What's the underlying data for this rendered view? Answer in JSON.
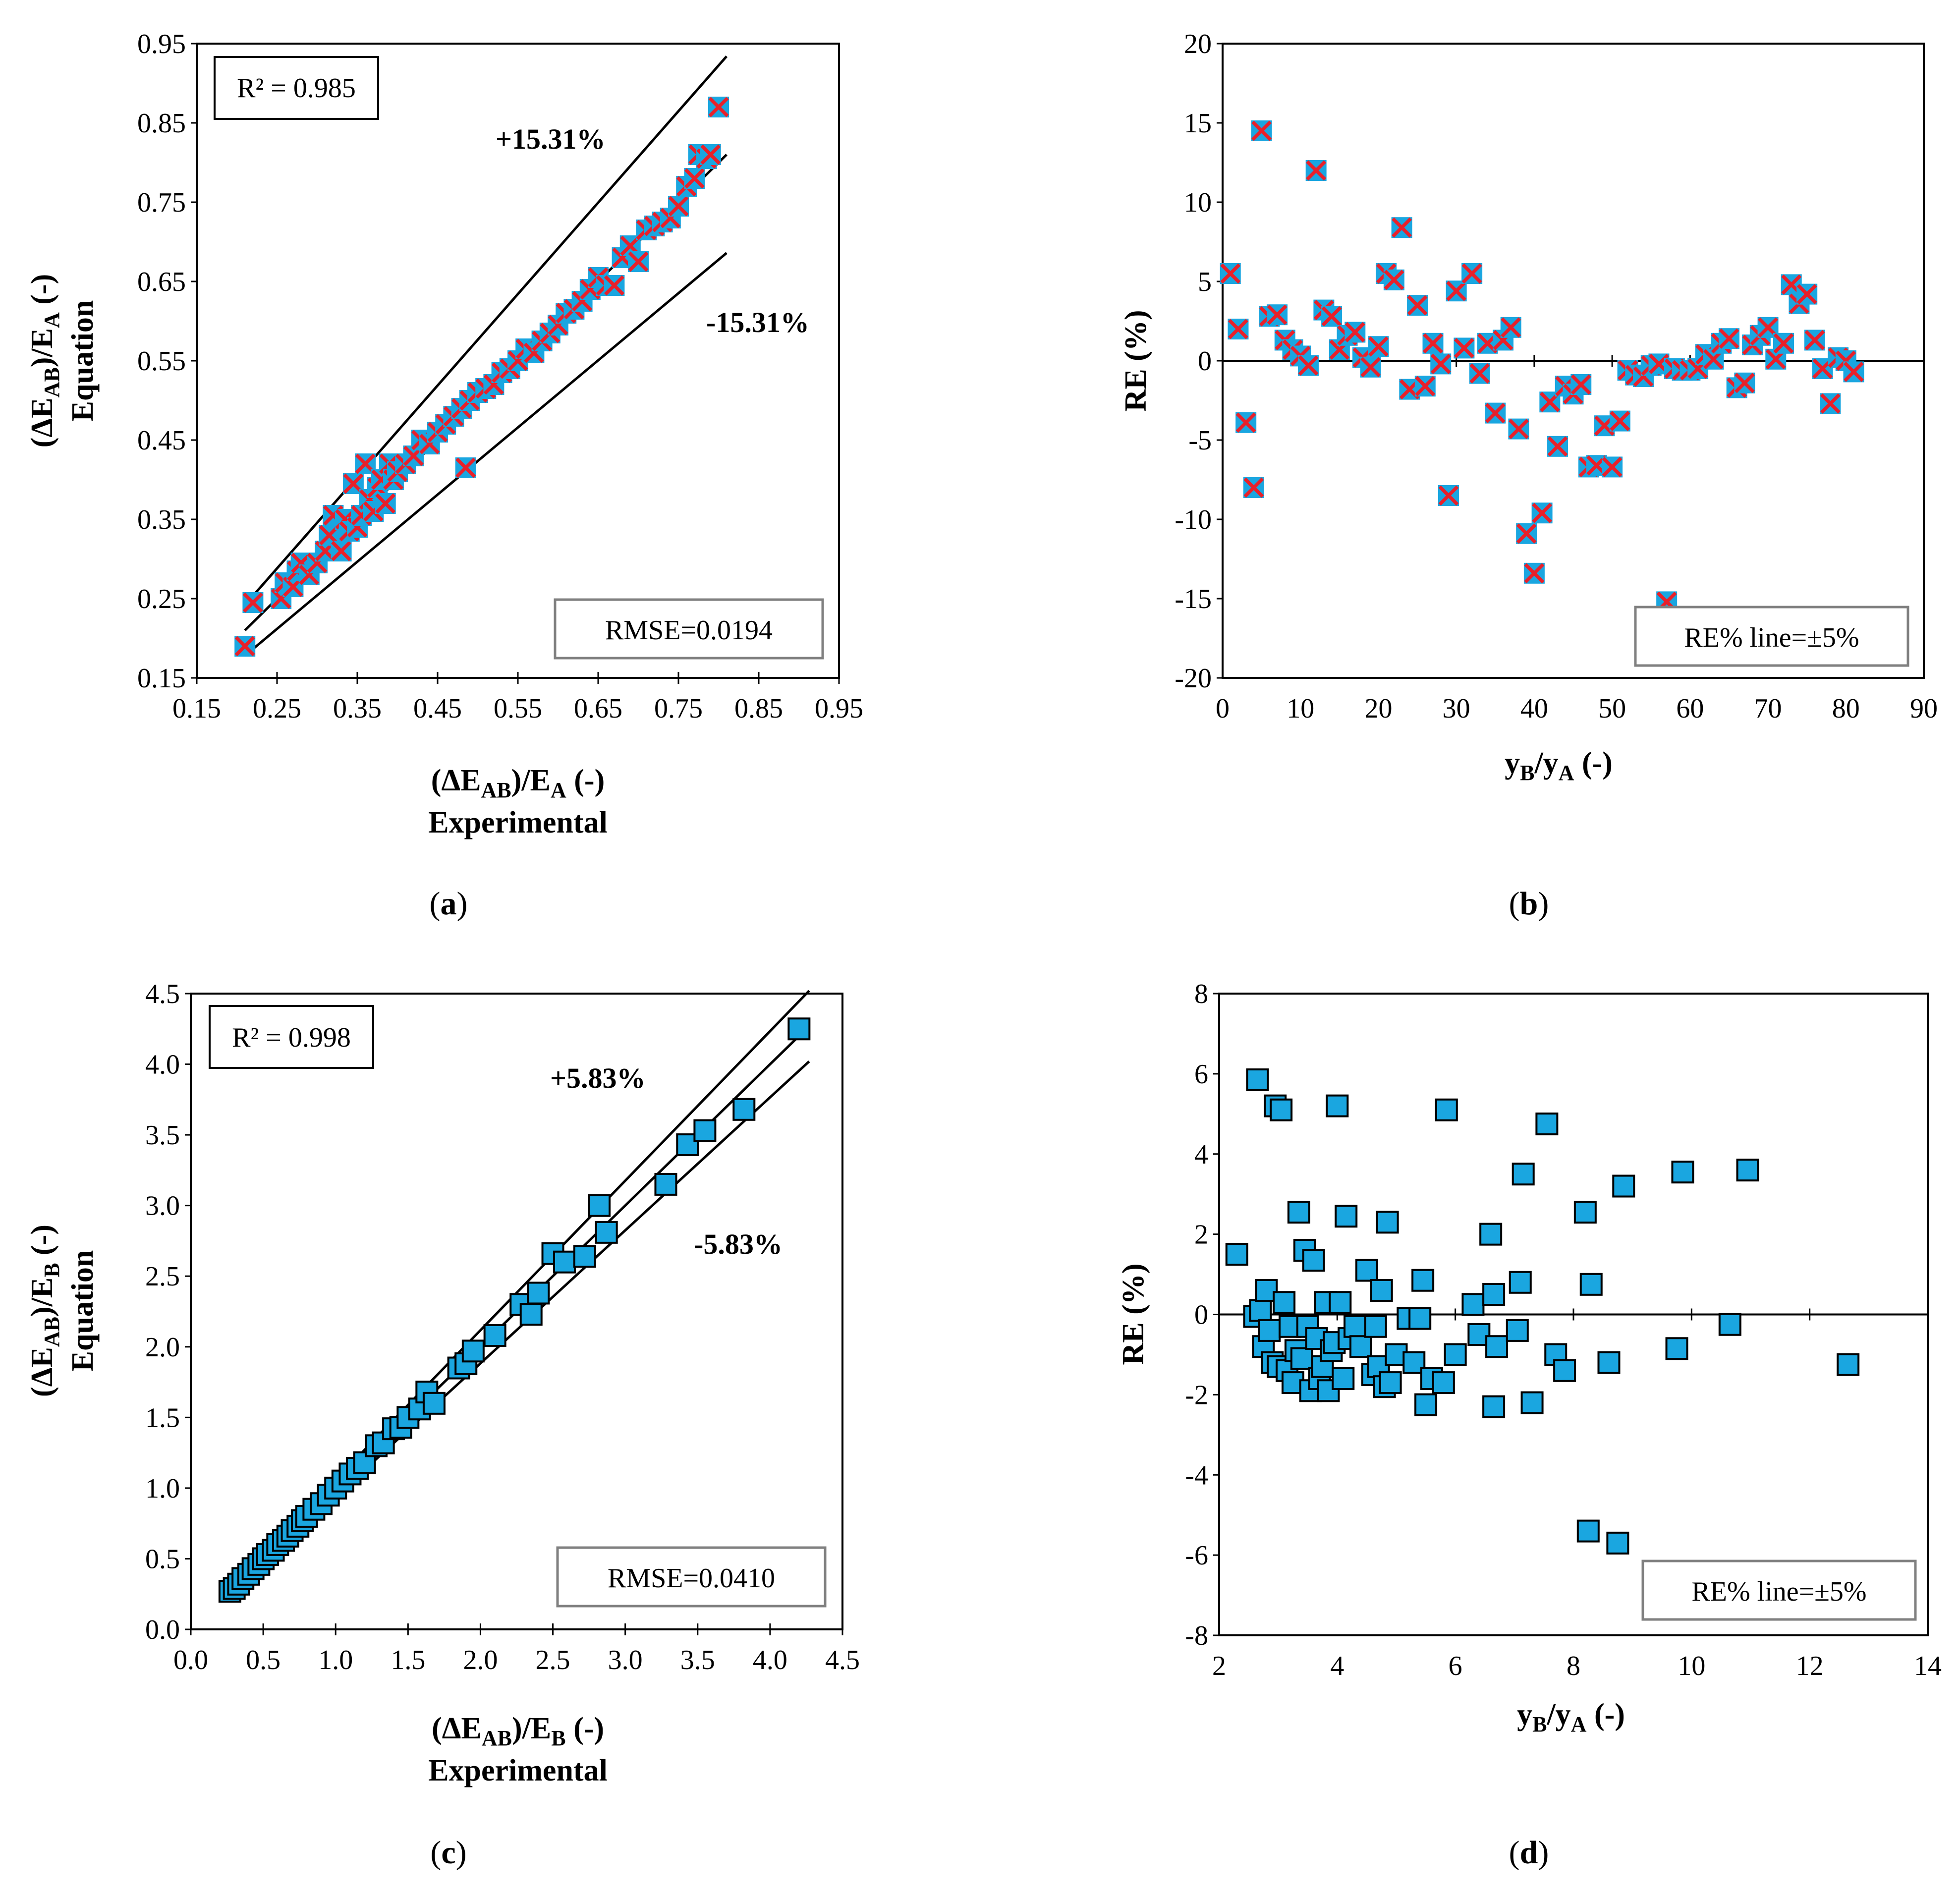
{
  "colors": {
    "marker_fill": "#1aa6e0",
    "cross": "#e8202a",
    "line": "#000000",
    "box_gray": "#808080"
  },
  "panels": {
    "a": {
      "label_open": "(",
      "label_letter": "a",
      "label_close": ")",
      "r2": "R² = 0.985",
      "rmse": "RMSE=0.0194",
      "plus_label": "+15.31%",
      "minus_label": "-15.31%",
      "xlabel_main": "(ΔE",
      "xlabel_sub1": "AB",
      "xlabel_mid": ")/E",
      "xlabel_sub2": "A",
      "xlabel_end": " (-)",
      "xlabel2": "Experimental",
      "ylabel_main": "(ΔE",
      "ylabel_sub1": "AB",
      "ylabel_mid": ")/E",
      "ylabel_sub2": "A",
      "ylabel_end": " (-)",
      "ylabel2": "Equation"
    },
    "b": {
      "label_open": "(",
      "label_letter": "b",
      "label_close": ")",
      "note": "RE% line=±5%",
      "xlabel_main": "y",
      "xlabel_sub1": "B",
      "xlabel_mid": "/y",
      "xlabel_sub2": "A",
      "xlabel_end": " (-)",
      "ylabel": "RE (%)"
    },
    "c": {
      "label_open": "(",
      "label_letter": "c",
      "label_close": ")",
      "r2": "R² = 0.998",
      "rmse": "RMSE=0.0410",
      "plus_label": "+5.83%",
      "minus_label": "-5.83%",
      "xlabel_main": "(ΔE",
      "xlabel_sub1": "AB",
      "xlabel_mid": ")/E",
      "xlabel_sub2": "B",
      "xlabel_end": " (-)",
      "xlabel2": "Experimental",
      "ylabel_main": "(ΔE",
      "ylabel_sub1": "AB",
      "ylabel_mid": ")/E",
      "ylabel_sub2": "B",
      "ylabel_end": " (-)",
      "ylabel2": "Equation"
    },
    "d": {
      "label_open": "(",
      "label_letter": "d",
      "label_close": ")",
      "note": "RE% line=±5%",
      "xlabel_main": "y",
      "xlabel_sub1": "B",
      "xlabel_mid": "/y",
      "xlabel_sub2": "A",
      "xlabel_end": " (-)",
      "ylabel": "RE (%)"
    }
  },
  "chart_data": [
    {
      "type": "scatter",
      "panel": "a",
      "xlim": [
        0.15,
        0.95
      ],
      "ylim": [
        0.15,
        0.95
      ],
      "xticks": [
        "0.15",
        "0.25",
        "0.35",
        "0.45",
        "0.55",
        "0.65",
        "0.75",
        "0.85",
        "0.95"
      ],
      "yticks": [
        "0.15",
        "0.25",
        "0.35",
        "0.45",
        "0.55",
        "0.65",
        "0.75",
        "0.85",
        "0.95"
      ],
      "ref_lines": [
        {
          "name": "+15.31%",
          "x": [
            0.21,
            0.81
          ],
          "y": [
            0.242,
            0.934
          ]
        },
        {
          "name": "fit",
          "x": [
            0.21,
            0.81
          ],
          "y": [
            0.21,
            0.81
          ]
        },
        {
          "name": "-15.31%",
          "x": [
            0.21,
            0.81
          ],
          "y": [
            0.178,
            0.686
          ]
        }
      ],
      "points": [
        [
          0.21,
          0.19
        ],
        [
          0.22,
          0.245
        ],
        [
          0.255,
          0.25
        ],
        [
          0.26,
          0.27
        ],
        [
          0.27,
          0.265
        ],
        [
          0.275,
          0.285
        ],
        [
          0.28,
          0.295
        ],
        [
          0.29,
          0.28
        ],
        [
          0.3,
          0.295
        ],
        [
          0.31,
          0.31
        ],
        [
          0.315,
          0.33
        ],
        [
          0.32,
          0.355
        ],
        [
          0.33,
          0.31
        ],
        [
          0.335,
          0.35
        ],
        [
          0.34,
          0.335
        ],
        [
          0.345,
          0.395
        ],
        [
          0.35,
          0.34
        ],
        [
          0.355,
          0.355
        ],
        [
          0.36,
          0.42
        ],
        [
          0.365,
          0.375
        ],
        [
          0.37,
          0.36
        ],
        [
          0.375,
          0.39
        ],
        [
          0.38,
          0.4
        ],
        [
          0.385,
          0.37
        ],
        [
          0.39,
          0.42
        ],
        [
          0.395,
          0.4
        ],
        [
          0.4,
          0.41
        ],
        [
          0.41,
          0.42
        ],
        [
          0.42,
          0.43
        ],
        [
          0.43,
          0.45
        ],
        [
          0.44,
          0.445
        ],
        [
          0.45,
          0.46
        ],
        [
          0.46,
          0.47
        ],
        [
          0.47,
          0.48
        ],
        [
          0.48,
          0.49
        ],
        [
          0.485,
          0.415
        ],
        [
          0.49,
          0.5
        ],
        [
          0.5,
          0.51
        ],
        [
          0.51,
          0.515
        ],
        [
          0.52,
          0.52
        ],
        [
          0.53,
          0.535
        ],
        [
          0.54,
          0.54
        ],
        [
          0.55,
          0.55
        ],
        [
          0.56,
          0.565
        ],
        [
          0.57,
          0.56
        ],
        [
          0.58,
          0.575
        ],
        [
          0.59,
          0.585
        ],
        [
          0.6,
          0.595
        ],
        [
          0.61,
          0.61
        ],
        [
          0.62,
          0.615
        ],
        [
          0.63,
          0.625
        ],
        [
          0.64,
          0.64
        ],
        [
          0.65,
          0.655
        ],
        [
          0.66,
          0.645
        ],
        [
          0.67,
          0.645
        ],
        [
          0.68,
          0.68
        ],
        [
          0.69,
          0.695
        ],
        [
          0.7,
          0.675
        ],
        [
          0.71,
          0.715
        ],
        [
          0.72,
          0.72
        ],
        [
          0.73,
          0.725
        ],
        [
          0.74,
          0.73
        ],
        [
          0.75,
          0.745
        ],
        [
          0.76,
          0.77
        ],
        [
          0.77,
          0.78
        ],
        [
          0.775,
          0.81
        ],
        [
          0.785,
          0.805
        ],
        [
          0.79,
          0.81
        ],
        [
          0.8,
          0.87
        ]
      ]
    },
    {
      "type": "scatter",
      "panel": "b",
      "xlim": [
        0,
        90
      ],
      "ylim": [
        -20,
        20
      ],
      "xticks": [
        "0",
        "10",
        "20",
        "30",
        "40",
        "50",
        "60",
        "70",
        "80",
        "90"
      ],
      "yticks": [
        "-20",
        "-15",
        "-10",
        "-5",
        "0",
        "5",
        "10",
        "15",
        "20"
      ],
      "points": [
        [
          1,
          5.5
        ],
        [
          2,
          2.0
        ],
        [
          3,
          -3.9
        ],
        [
          4,
          -8.0
        ],
        [
          5,
          14.5
        ],
        [
          6,
          2.8
        ],
        [
          7,
          2.9
        ],
        [
          8,
          1.3
        ],
        [
          9,
          0.7
        ],
        [
          10,
          0.3
        ],
        [
          11,
          -0.3
        ],
        [
          12,
          12.0
        ],
        [
          13,
          3.2
        ],
        [
          14,
          2.8
        ],
        [
          15,
          0.7
        ],
        [
          16,
          1.6
        ],
        [
          17,
          1.8
        ],
        [
          18,
          0.2
        ],
        [
          19,
          -0.4
        ],
        [
          20,
          0.9
        ],
        [
          21,
          5.5
        ],
        [
          22,
          5.1
        ],
        [
          23,
          8.4
        ],
        [
          24,
          -1.8
        ],
        [
          25,
          3.5
        ],
        [
          26,
          -1.6
        ],
        [
          27,
          1.1
        ],
        [
          28,
          -0.2
        ],
        [
          29,
          -8.5
        ],
        [
          30,
          4.4
        ],
        [
          31,
          0.8
        ],
        [
          32,
          5.5
        ],
        [
          33,
          -0.8
        ],
        [
          34,
          1.1
        ],
        [
          35,
          -3.3
        ],
        [
          36,
          1.3
        ],
        [
          37,
          2.1
        ],
        [
          38,
          -4.3
        ],
        [
          39,
          -10.9
        ],
        [
          40,
          -13.4
        ],
        [
          41,
          -9.6
        ],
        [
          42,
          -2.6
        ],
        [
          43,
          -5.4
        ],
        [
          44,
          -1.6
        ],
        [
          45,
          -2.1
        ],
        [
          46,
          -1.5
        ],
        [
          47,
          -6.7
        ],
        [
          48,
          -6.6
        ],
        [
          49,
          -4.1
        ],
        [
          50,
          -6.7
        ],
        [
          51,
          -3.8
        ],
        [
          52,
          -0.6
        ],
        [
          53,
          -0.9
        ],
        [
          54,
          -1.0
        ],
        [
          55,
          -0.3
        ],
        [
          56,
          -0.2
        ],
        [
          57,
          -15.2
        ],
        [
          58,
          -0.5
        ],
        [
          59,
          -0.6
        ],
        [
          60,
          -0.6
        ],
        [
          61,
          -0.5
        ],
        [
          62,
          0.4
        ],
        [
          63,
          0.1
        ],
        [
          64,
          1.1
        ],
        [
          65,
          1.4
        ],
        [
          66,
          -1.7
        ],
        [
          67,
          -1.4
        ],
        [
          68,
          1.0
        ],
        [
          69,
          1.6
        ],
        [
          70,
          2.1
        ],
        [
          71,
          0.1
        ],
        [
          72,
          1.1
        ],
        [
          73,
          4.8
        ],
        [
          74,
          3.6
        ],
        [
          75,
          4.2
        ],
        [
          76,
          1.3
        ],
        [
          77,
          -0.5
        ],
        [
          78,
          -2.7
        ],
        [
          79,
          0.2
        ],
        [
          80,
          0.0
        ],
        [
          81,
          -0.7
        ]
      ]
    },
    {
      "type": "scatter",
      "panel": "c",
      "xlim": [
        0.0,
        4.5
      ],
      "ylim": [
        0.0,
        4.5
      ],
      "xticks": [
        "0.0",
        "0.5",
        "1.0",
        "1.5",
        "2.0",
        "2.5",
        "3.0",
        "3.5",
        "4.0",
        "4.5"
      ],
      "yticks": [
        "0.0",
        "0.5",
        "1.0",
        "1.5",
        "2.0",
        "2.5",
        "3.0",
        "3.5",
        "4.0",
        "4.5"
      ],
      "ref_lines": [
        {
          "name": "+5.83%",
          "x": [
            0.27,
            4.27
          ],
          "y": [
            0.286,
            4.52
          ]
        },
        {
          "name": "fit",
          "x": [
            0.27,
            4.27
          ],
          "y": [
            0.27,
            4.27
          ]
        },
        {
          "name": "-5.83%",
          "x": [
            0.27,
            4.27
          ],
          "y": [
            0.254,
            4.02
          ]
        }
      ],
      "points": [
        [
          0.27,
          0.27
        ],
        [
          0.3,
          0.29
        ],
        [
          0.33,
          0.32
        ],
        [
          0.36,
          0.36
        ],
        [
          0.4,
          0.39
        ],
        [
          0.43,
          0.43
        ],
        [
          0.47,
          0.46
        ],
        [
          0.5,
          0.5
        ],
        [
          0.53,
          0.53
        ],
        [
          0.57,
          0.56
        ],
        [
          0.6,
          0.6
        ],
        [
          0.64,
          0.63
        ],
        [
          0.67,
          0.66
        ],
        [
          0.7,
          0.7
        ],
        [
          0.74,
          0.73
        ],
        [
          0.77,
          0.77
        ],
        [
          0.8,
          0.8
        ],
        [
          0.85,
          0.85
        ],
        [
          0.9,
          0.89
        ],
        [
          0.95,
          0.95
        ],
        [
          1.0,
          1.0
        ],
        [
          1.05,
          1.05
        ],
        [
          1.1,
          1.1
        ],
        [
          1.15,
          1.14
        ],
        [
          1.2,
          1.18
        ],
        [
          1.28,
          1.3
        ],
        [
          1.33,
          1.32
        ],
        [
          1.4,
          1.42
        ],
        [
          1.45,
          1.43
        ],
        [
          1.5,
          1.5
        ],
        [
          1.58,
          1.56
        ],
        [
          1.63,
          1.68
        ],
        [
          1.68,
          1.6
        ],
        [
          1.85,
          1.85
        ],
        [
          1.9,
          1.88
        ],
        [
          1.95,
          1.97
        ],
        [
          2.1,
          2.08
        ],
        [
          2.28,
          2.3
        ],
        [
          2.35,
          2.23
        ],
        [
          2.4,
          2.38
        ],
        [
          2.5,
          2.66
        ],
        [
          2.58,
          2.6
        ],
        [
          2.72,
          2.64
        ],
        [
          2.82,
          3.0
        ],
        [
          2.87,
          2.81
        ],
        [
          3.28,
          3.15
        ],
        [
          3.43,
          3.43
        ],
        [
          3.55,
          3.53
        ],
        [
          3.82,
          3.68
        ],
        [
          4.2,
          4.25
        ]
      ]
    },
    {
      "type": "scatter",
      "panel": "d",
      "xlim": [
        2,
        14
      ],
      "ylim": [
        -8,
        8
      ],
      "xticks": [
        "2",
        "4",
        "6",
        "8",
        "10",
        "12",
        "14"
      ],
      "yticks": [
        "-8",
        "-6",
        "-4",
        "-2",
        "0",
        "2",
        "4",
        "6",
        "8"
      ],
      "points": [
        [
          2.3,
          1.5
        ],
        [
          2.6,
          -0.05
        ],
        [
          2.65,
          5.85
        ],
        [
          2.7,
          0.1
        ],
        [
          2.75,
          -0.8
        ],
        [
          2.8,
          0.6
        ],
        [
          2.85,
          -0.4
        ],
        [
          2.9,
          -1.2
        ],
        [
          2.95,
          5.2
        ],
        [
          3.0,
          -1.3
        ],
        [
          3.05,
          5.1
        ],
        [
          3.1,
          0.3
        ],
        [
          3.15,
          -1.4
        ],
        [
          3.2,
          -0.3
        ],
        [
          3.25,
          -1.7
        ],
        [
          3.3,
          -0.9
        ],
        [
          3.35,
          2.55
        ],
        [
          3.4,
          -1.1
        ],
        [
          3.45,
          1.6
        ],
        [
          3.5,
          -0.3
        ],
        [
          3.55,
          -1.9
        ],
        [
          3.6,
          1.35
        ],
        [
          3.65,
          -0.6
        ],
        [
          3.7,
          -1.6
        ],
        [
          3.75,
          -1.3
        ],
        [
          3.8,
          0.3
        ],
        [
          3.85,
          -1.9
        ],
        [
          3.9,
          -0.9
        ],
        [
          3.95,
          -0.7
        ],
        [
          4.0,
          5.2
        ],
        [
          4.05,
          0.3
        ],
        [
          4.1,
          -1.6
        ],
        [
          4.15,
          2.45
        ],
        [
          4.2,
          -0.6
        ],
        [
          4.3,
          -0.3
        ],
        [
          4.4,
          -0.8
        ],
        [
          4.5,
          1.1
        ],
        [
          4.6,
          -1.5
        ],
        [
          4.65,
          -0.3
        ],
        [
          4.7,
          -1.3
        ],
        [
          4.75,
          0.6
        ],
        [
          4.8,
          -1.8
        ],
        [
          4.85,
          2.3
        ],
        [
          4.9,
          -1.7
        ],
        [
          5.0,
          -1.0
        ],
        [
          5.2,
          -0.1
        ],
        [
          5.3,
          -1.2
        ],
        [
          5.4,
          -0.1
        ],
        [
          5.45,
          0.85
        ],
        [
          5.5,
          -2.25
        ],
        [
          5.6,
          -1.6
        ],
        [
          5.8,
          -1.7
        ],
        [
          5.85,
          5.1
        ],
        [
          6.0,
          -1.0
        ],
        [
          6.3,
          0.25
        ],
        [
          6.4,
          -0.5
        ],
        [
          6.6,
          2.0
        ],
        [
          6.65,
          0.5
        ],
        [
          6.7,
          -0.8
        ],
        [
          6.65,
          -2.3
        ],
        [
          7.05,
          -0.4
        ],
        [
          7.1,
          0.8
        ],
        [
          7.15,
          3.5
        ],
        [
          7.3,
          -2.2
        ],
        [
          7.55,
          4.75
        ],
        [
          7.7,
          -1.0
        ],
        [
          7.85,
          -1.4
        ],
        [
          8.2,
          2.55
        ],
        [
          8.25,
          -5.4
        ],
        [
          8.3,
          0.75
        ],
        [
          8.6,
          -1.2
        ],
        [
          8.75,
          -5.7
        ],
        [
          8.85,
          3.2
        ],
        [
          9.75,
          -0.85
        ],
        [
          9.85,
          3.55
        ],
        [
          10.65,
          -0.25
        ],
        [
          10.95,
          3.6
        ],
        [
          12.65,
          -1.25
        ]
      ]
    }
  ]
}
